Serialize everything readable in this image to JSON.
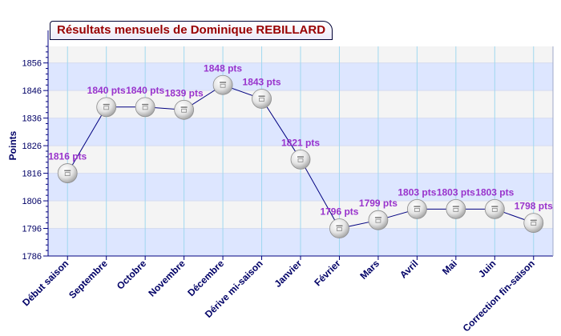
{
  "chart_data": {
    "type": "line",
    "title": "Résultats mensuels de Dominique REBILLARD",
    "xlabel": "",
    "ylabel": "Points",
    "ylim": [
      1786,
      1862
    ],
    "yticks": [
      1786,
      1796,
      1806,
      1816,
      1826,
      1836,
      1846,
      1856
    ],
    "grid": true,
    "categories": [
      "Début saison",
      "Septembre",
      "Octobre",
      "Novembre",
      "Décembre",
      "Dérive mi-saison",
      "Janvier",
      "Février",
      "Mars",
      "Avril",
      "Mai",
      "Juin",
      "Correction fin-saison"
    ],
    "values": [
      1816,
      1840,
      1840,
      1839,
      1848,
      1843,
      1821,
      1796,
      1799,
      1803,
      1803,
      1803,
      1798
    ],
    "data_labels": [
      "1816 pts",
      "1840 pts",
      "1840 pts",
      "1839 pts",
      "1848 pts",
      "1843 pts",
      "1821 pts",
      "1796 pts",
      "1799 pts",
      "1803 pts",
      "1803 pts",
      "1803 pts",
      "1798 pts"
    ],
    "colors": {
      "line": "#000080",
      "label": "#9933cc",
      "title": "#990000",
      "axis_text": "#000066",
      "band_light": "#f4f4f4",
      "band_blue": "#dde6ff",
      "grid": "#a0d8ef"
    }
  }
}
